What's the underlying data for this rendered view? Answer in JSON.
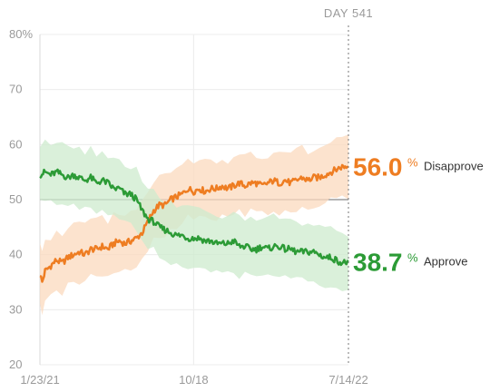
{
  "chart_data": {
    "type": "line",
    "ylim": [
      20,
      80
    ],
    "y_ticks": [
      "20",
      "30",
      "40",
      "50",
      "60",
      "70",
      "80%"
    ],
    "x_ticks": [
      "1/23/21",
      "10/18",
      "7/14/22"
    ],
    "x_tick_days": [
      1,
      270,
      541
    ],
    "x_range_days": [
      1,
      541
    ],
    "reference_line": 50,
    "marker": {
      "label": "DAY 541",
      "day": 541
    },
    "grid": true,
    "series": [
      {
        "name": "Disapprove",
        "color": "#ee7d22",
        "band_color": "#fbd9bd",
        "final_value": "56.0",
        "unit": "%",
        "points": [
          [
            1,
            36.5
          ],
          [
            5,
            35
          ],
          [
            10,
            37
          ],
          [
            20,
            38
          ],
          [
            30,
            39
          ],
          [
            40,
            38.5
          ],
          [
            50,
            39.5
          ],
          [
            60,
            40
          ],
          [
            70,
            40.5
          ],
          [
            80,
            40
          ],
          [
            90,
            41
          ],
          [
            100,
            41
          ],
          [
            110,
            41.5
          ],
          [
            120,
            41
          ],
          [
            130,
            42
          ],
          [
            140,
            42.5
          ],
          [
            150,
            42
          ],
          [
            160,
            42.5
          ],
          [
            170,
            43
          ],
          [
            180,
            44
          ],
          [
            190,
            46
          ],
          [
            200,
            48
          ],
          [
            210,
            49
          ],
          [
            220,
            49
          ],
          [
            230,
            50
          ],
          [
            240,
            50.5
          ],
          [
            250,
            51
          ],
          [
            260,
            52
          ],
          [
            270,
            51.5
          ],
          [
            280,
            52
          ],
          [
            290,
            51.5
          ],
          [
            300,
            52
          ],
          [
            310,
            52
          ],
          [
            320,
            52.5
          ],
          [
            330,
            52
          ],
          [
            340,
            52.5
          ],
          [
            350,
            53
          ],
          [
            360,
            52.5
          ],
          [
            370,
            53
          ],
          [
            380,
            53
          ],
          [
            390,
            52.5
          ],
          [
            400,
            53
          ],
          [
            410,
            53.5
          ],
          [
            420,
            53
          ],
          [
            430,
            53.5
          ],
          [
            440,
            53
          ],
          [
            450,
            53.5
          ],
          [
            460,
            54
          ],
          [
            470,
            53.5
          ],
          [
            480,
            54
          ],
          [
            490,
            54
          ],
          [
            500,
            54.5
          ],
          [
            510,
            55
          ],
          [
            520,
            55.5
          ],
          [
            530,
            56
          ],
          [
            541,
            56
          ]
        ]
      },
      {
        "name": "Approve",
        "color": "#2c9b36",
        "band_color": "#cdebcd",
        "final_value": "38.7",
        "unit": "%",
        "points": [
          [
            1,
            54.5
          ],
          [
            10,
            55
          ],
          [
            20,
            54.5
          ],
          [
            30,
            55
          ],
          [
            40,
            54.5
          ],
          [
            50,
            54
          ],
          [
            60,
            54.5
          ],
          [
            70,
            54
          ],
          [
            80,
            53.5
          ],
          [
            90,
            54
          ],
          [
            100,
            53
          ],
          [
            110,
            53.5
          ],
          [
            120,
            53
          ],
          [
            130,
            52
          ],
          [
            140,
            52
          ],
          [
            150,
            51
          ],
          [
            160,
            51
          ],
          [
            170,
            50
          ],
          [
            180,
            48
          ],
          [
            190,
            46.5
          ],
          [
            200,
            46
          ],
          [
            210,
            45
          ],
          [
            220,
            44.5
          ],
          [
            230,
            44
          ],
          [
            240,
            43.5
          ],
          [
            250,
            43.5
          ],
          [
            260,
            43
          ],
          [
            270,
            43
          ],
          [
            280,
            43
          ],
          [
            290,
            42.5
          ],
          [
            300,
            42.5
          ],
          [
            310,
            42
          ],
          [
            320,
            42
          ],
          [
            330,
            42
          ],
          [
            340,
            42.5
          ],
          [
            350,
            41.5
          ],
          [
            360,
            41.5
          ],
          [
            370,
            41
          ],
          [
            380,
            41
          ],
          [
            390,
            41.5
          ],
          [
            400,
            41
          ],
          [
            410,
            41.5
          ],
          [
            420,
            41.5
          ],
          [
            430,
            41
          ],
          [
            440,
            41
          ],
          [
            450,
            40.5
          ],
          [
            460,
            40.5
          ],
          [
            470,
            40.5
          ],
          [
            480,
            40.5
          ],
          [
            490,
            40
          ],
          [
            500,
            39.5
          ],
          [
            510,
            39.5
          ],
          [
            520,
            39
          ],
          [
            530,
            38.5
          ],
          [
            541,
            38.7
          ]
        ]
      }
    ]
  }
}
